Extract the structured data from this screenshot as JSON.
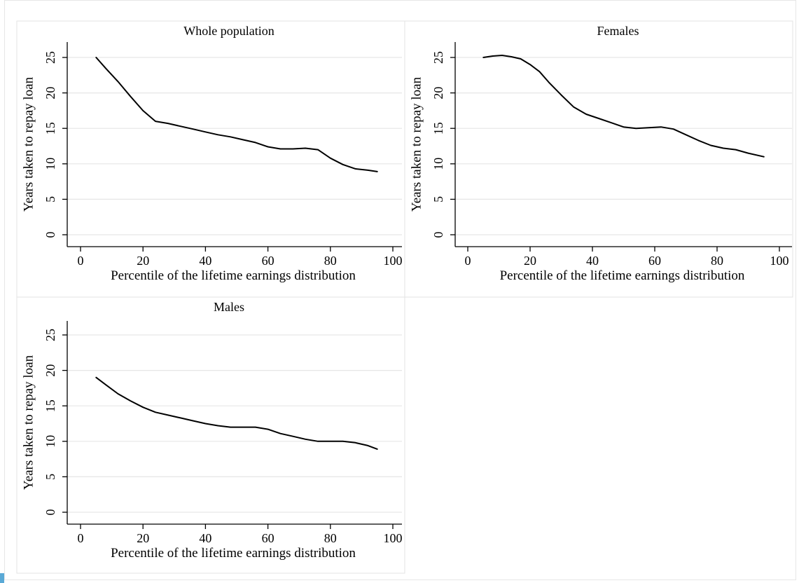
{
  "colors": {
    "line": "#000000",
    "grid": "#e6e6e6",
    "background": "#ffffff"
  },
  "chart_data": [
    {
      "type": "line",
      "title": "Whole population",
      "xlabel": "Percentile of the lifetime earnings distribution",
      "ylabel": "Years taken to repay loan",
      "xlim": [
        0,
        100
      ],
      "ylim": [
        0,
        25
      ],
      "xticks": [
        0,
        20,
        40,
        60,
        80,
        100
      ],
      "yticks": [
        0,
        5,
        10,
        15,
        20,
        25
      ],
      "grid": true,
      "series": [
        {
          "x": [
            5,
            8,
            12,
            16,
            20,
            24,
            28,
            32,
            36,
            40,
            44,
            48,
            52,
            56,
            60,
            64,
            68,
            72,
            76,
            80,
            84,
            88,
            92,
            95
          ],
          "y": [
            25,
            23.5,
            21.6,
            19.5,
            17.5,
            16,
            15.7,
            15.3,
            14.9,
            14.5,
            14.1,
            13.8,
            13.4,
            13,
            12.4,
            12.1,
            12.1,
            12.2,
            12,
            10.8,
            9.9,
            9.3,
            9.1,
            8.9
          ]
        }
      ]
    },
    {
      "type": "line",
      "title": "Females",
      "xlabel": "Percentile of the lifetime earnings distribution",
      "ylabel": "Years taken to repay loan",
      "xlim": [
        0,
        100
      ],
      "ylim": [
        0,
        25
      ],
      "xticks": [
        0,
        20,
        40,
        60,
        80,
        100
      ],
      "yticks": [
        0,
        5,
        10,
        15,
        20,
        25
      ],
      "grid": true,
      "series": [
        {
          "x": [
            5,
            8,
            11,
            14,
            17,
            20,
            23,
            26,
            30,
            34,
            38,
            42,
            46,
            50,
            54,
            58,
            62,
            66,
            70,
            74,
            78,
            82,
            86,
            90,
            95
          ],
          "y": [
            25,
            25.2,
            25.3,
            25.1,
            24.8,
            24,
            23,
            21.5,
            19.7,
            18,
            17,
            16.4,
            15.8,
            15.2,
            15,
            15.1,
            15.2,
            14.9,
            14.1,
            13.3,
            12.6,
            12.2,
            12,
            11.5,
            11
          ]
        }
      ]
    },
    {
      "type": "line",
      "title": "Males",
      "xlabel": "Percentile of the lifetime earnings distribution",
      "ylabel": "Years taken to repay loan",
      "xlim": [
        0,
        100
      ],
      "ylim": [
        0,
        25
      ],
      "xticks": [
        0,
        20,
        40,
        60,
        80,
        100
      ],
      "yticks": [
        0,
        5,
        10,
        15,
        20,
        25
      ],
      "grid": true,
      "series": [
        {
          "x": [
            5,
            8,
            12,
            16,
            20,
            24,
            28,
            32,
            36,
            40,
            44,
            48,
            52,
            56,
            60,
            64,
            68,
            72,
            76,
            80,
            84,
            88,
            92,
            95
          ],
          "y": [
            19,
            18,
            16.7,
            15.7,
            14.8,
            14.1,
            13.7,
            13.3,
            12.9,
            12.5,
            12.2,
            12,
            12,
            12,
            11.7,
            11.1,
            10.7,
            10.3,
            10,
            10,
            10,
            9.8,
            9.4,
            8.9
          ]
        }
      ]
    }
  ]
}
